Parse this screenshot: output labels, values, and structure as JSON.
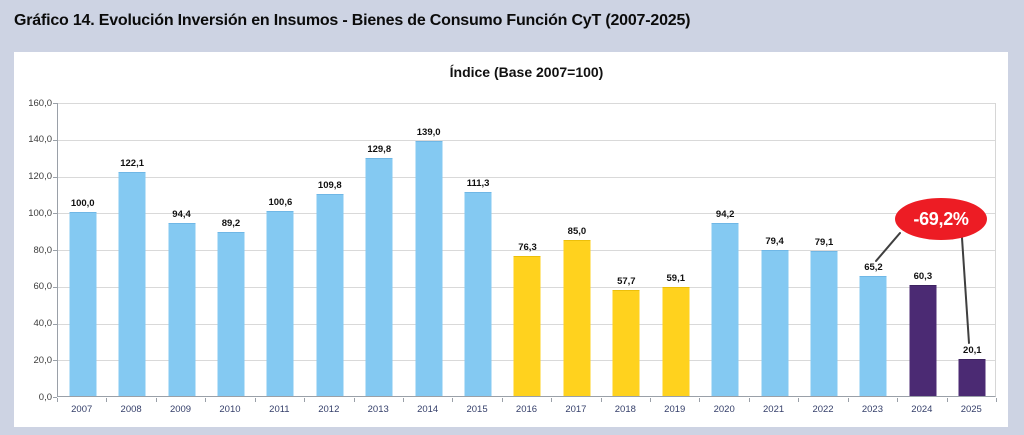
{
  "page_title": "Gráfico 14. Evolución Inversión en Insumos - Bienes de Consumo Función CyT (2007-2025)",
  "chart": {
    "title": "Índice (Base 2007=100)",
    "annotation": {
      "label": "-69,2%",
      "fill_color": "#ed1c24",
      "text_color": "#ffffff",
      "points_to": [
        "2023",
        "2025"
      ]
    }
  },
  "chart_data": {
    "type": "bar",
    "title": "Índice (Base 2007=100)",
    "xlabel": "",
    "ylabel": "",
    "ylim": [
      0,
      160
    ],
    "ytick_step": 20,
    "ytick_labels": [
      "0,0",
      "20,0",
      "40,0",
      "60,0",
      "80,0",
      "100,0",
      "120,0",
      "140,0",
      "160,0"
    ],
    "grid": true,
    "categories": [
      "2007",
      "2008",
      "2009",
      "2010",
      "2011",
      "2012",
      "2013",
      "2014",
      "2015",
      "2016",
      "2017",
      "2018",
      "2019",
      "2020",
      "2021",
      "2022",
      "2023",
      "2024",
      "2025"
    ],
    "values": [
      100.0,
      122.1,
      94.4,
      89.2,
      100.6,
      109.8,
      129.8,
      139.0,
      111.3,
      76.3,
      85.0,
      57.7,
      59.1,
      94.2,
      79.4,
      79.1,
      65.2,
      60.3,
      20.1
    ],
    "value_labels": [
      "100,0",
      "122,1",
      "94,4",
      "89,2",
      "100,6",
      "109,8",
      "129,8",
      "139,0",
      "111,3",
      "76,3",
      "85,0",
      "57,7",
      "59,1",
      "94,2",
      "79,4",
      "79,1",
      "65,2",
      "60,3",
      "20,1"
    ],
    "bar_color_keys": [
      "blue",
      "blue",
      "blue",
      "blue",
      "blue",
      "blue",
      "blue",
      "blue",
      "blue",
      "yellow",
      "yellow",
      "yellow",
      "yellow",
      "blue",
      "blue",
      "blue",
      "blue",
      "purple",
      "purple"
    ],
    "palette": {
      "blue": "#84c9f2",
      "yellow": "#ffd21e",
      "purple": "#4b2a73"
    },
    "palette_borders": {
      "blue": "#6fb7e6",
      "yellow": "#ecbf0a",
      "purple": "#3d2260"
    },
    "legend": null,
    "annotation": {
      "label": "-69,2%",
      "fill_color": "#ed1c24",
      "text_color": "#ffffff"
    }
  }
}
